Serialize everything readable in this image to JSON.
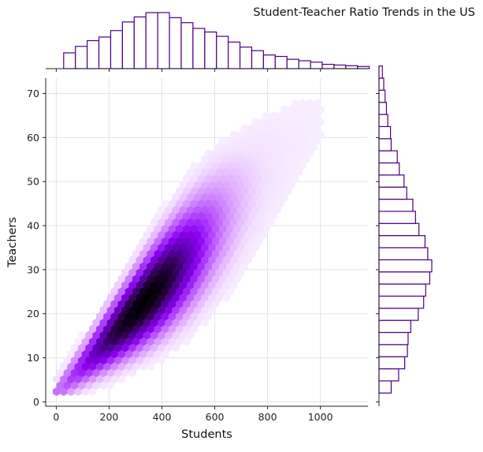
{
  "chart_data": {
    "type": "hexbin-joint",
    "title": "Student-Teacher Ratio Trends in the US",
    "xlabel": "Students",
    "ylabel": "Teachers",
    "xlim": [
      -40,
      1180
    ],
    "ylim": [
      -1,
      73.5
    ],
    "xticks": [
      0,
      200,
      400,
      600,
      800,
      1000
    ],
    "yticks": [
      0,
      10,
      20,
      30,
      40,
      50,
      60,
      70
    ],
    "grid": true,
    "colormap": [
      "#ffffff",
      "#f3e0ff",
      "#d99bff",
      "#b44cff",
      "#8c00f0",
      "#5a00a8",
      "#260040",
      "#000000"
    ],
    "hist_color": "#4b0082",
    "joint_density": {
      "trend": "Teachers ≈ 0.062 × Students + 2",
      "x_range": [
        0,
        1130
      ],
      "y_range": [
        2,
        70
      ],
      "peak": {
        "Students": 330,
        "Teachers": 25
      }
    },
    "marginal_x": {
      "bin_start": 28,
      "bin_width": 44.5,
      "counts": [
        0.22,
        0.31,
        0.39,
        0.44,
        0.53,
        0.65,
        0.72,
        0.78,
        0.78,
        0.71,
        0.64,
        0.56,
        0.51,
        0.45,
        0.37,
        0.3,
        0.25,
        0.19,
        0.17,
        0.13,
        0.11,
        0.09,
        0.06,
        0.05,
        0.04,
        0.03
      ]
    },
    "marginal_y": {
      "bin_start": 2,
      "bin_width": 2.75,
      "counts": [
        0.18,
        0.29,
        0.38,
        0.42,
        0.43,
        0.47,
        0.58,
        0.66,
        0.69,
        0.75,
        0.78,
        0.72,
        0.68,
        0.59,
        0.54,
        0.5,
        0.41,
        0.37,
        0.3,
        0.27,
        0.18,
        0.17,
        0.13,
        0.11,
        0.09,
        0.07,
        0.05
      ]
    }
  }
}
